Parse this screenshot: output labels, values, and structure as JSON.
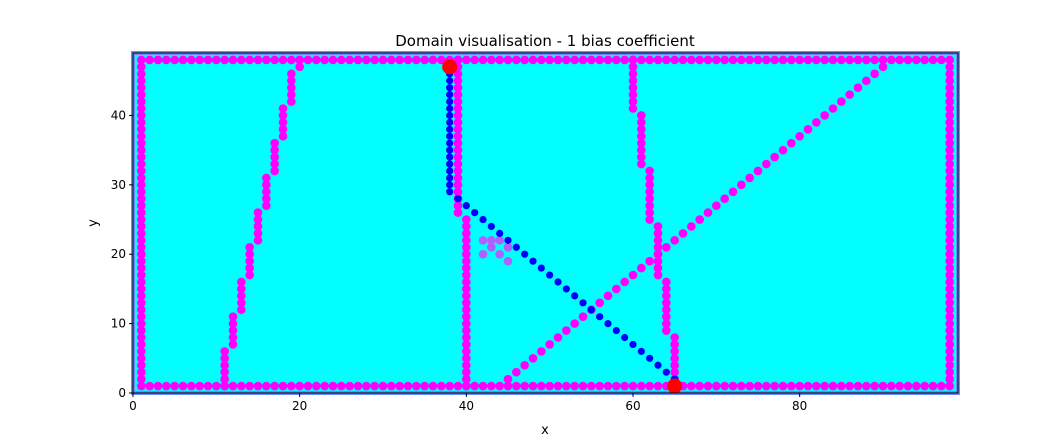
{
  "chart_data": {
    "type": "scatter",
    "title": "Domain visualisation - 1 bias coefficient",
    "xlabel": "x",
    "ylabel": "y",
    "xlim": [
      0,
      99
    ],
    "ylim": [
      0,
      49
    ],
    "xticks": [
      0,
      20,
      40,
      60,
      80
    ],
    "yticks": [
      0,
      10,
      20,
      30,
      40
    ],
    "grid": false,
    "colors": {
      "domain_fill": "#00ffff",
      "domain_edge": "#6b8cff",
      "obstacle": "#ff00ff",
      "path": "#0000ff",
      "faint": "#b060ff",
      "endpoint": "#ff0000",
      "axes": "#000000"
    },
    "background_region": {
      "x": [
        0,
        99
      ],
      "y": [
        0,
        49
      ]
    },
    "border": {
      "x_range": [
        1,
        98
      ],
      "y_range": [
        1,
        48
      ],
      "color": "#ff00ff"
    },
    "obstacle_segments": [
      {
        "x": [
          11,
          11
        ],
        "y": [
          1,
          6
        ]
      },
      {
        "x": [
          12,
          12
        ],
        "y": [
          7,
          11
        ]
      },
      {
        "x": [
          13,
          13
        ],
        "y": [
          12,
          16
        ]
      },
      {
        "x": [
          14,
          14
        ],
        "y": [
          17,
          21
        ]
      },
      {
        "x": [
          15,
          15
        ],
        "y": [
          22,
          26
        ]
      },
      {
        "x": [
          16,
          16
        ],
        "y": [
          27,
          31
        ]
      },
      {
        "x": [
          17,
          17
        ],
        "y": [
          32,
          36
        ]
      },
      {
        "x": [
          18,
          18
        ],
        "y": [
          37,
          41
        ]
      },
      {
        "x": [
          19,
          19
        ],
        "y": [
          42,
          46
        ]
      },
      {
        "x": [
          20,
          20
        ],
        "y": [
          47,
          48
        ]
      },
      {
        "x": [
          39,
          39
        ],
        "y": [
          26,
          48
        ]
      },
      {
        "x": [
          40,
          40
        ],
        "y": [
          1,
          25
        ]
      },
      {
        "x": [
          60,
          60
        ],
        "y": [
          41,
          48
        ]
      },
      {
        "x": [
          61,
          61
        ],
        "y": [
          33,
          40
        ]
      },
      {
        "x": [
          62,
          62
        ],
        "y": [
          25,
          32
        ]
      },
      {
        "x": [
          63,
          63
        ],
        "y": [
          17,
          24
        ]
      },
      {
        "x": [
          64,
          64
        ],
        "y": [
          9,
          16
        ]
      },
      {
        "x": [
          65,
          65
        ],
        "y": [
          1,
          8
        ]
      },
      {
        "x": [
          45,
          90
        ],
        "y": [
          2,
          47
        ]
      }
    ],
    "faint_points": {
      "x": [
        42,
        43,
        44,
        42,
        43,
        44,
        45,
        45
      ],
      "y": [
        22,
        21,
        22,
        20,
        22,
        20,
        21,
        19
      ]
    },
    "path_series": [
      {
        "x": [
          38,
          38,
          38,
          38,
          38,
          38,
          38,
          38,
          38,
          38,
          38,
          38,
          38,
          38,
          38,
          38,
          38,
          38,
          38,
          39,
          40,
          41,
          42,
          43,
          44,
          45,
          46,
          47,
          48,
          49,
          50,
          51,
          52,
          53,
          54,
          55,
          56,
          57,
          58,
          59,
          60,
          61,
          62,
          63,
          64,
          65
        ],
        "y": [
          47,
          46,
          45,
          44,
          43,
          42,
          41,
          40,
          39,
          38,
          37,
          36,
          35,
          34,
          33,
          32,
          31,
          30,
          29,
          28,
          27,
          26,
          25,
          24,
          23,
          22,
          21,
          20,
          19,
          18,
          17,
          16,
          15,
          14,
          13,
          12,
          11,
          10,
          9,
          8,
          7,
          6,
          5,
          4,
          3,
          2
        ]
      }
    ],
    "endpoints": {
      "x": [
        38,
        65
      ],
      "y": [
        47,
        1
      ]
    }
  }
}
